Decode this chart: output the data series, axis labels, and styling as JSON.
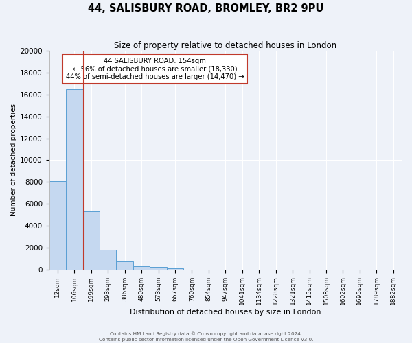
{
  "title": "44, SALISBURY ROAD, BROMLEY, BR2 9PU",
  "subtitle": "Size of property relative to detached houses in London",
  "xlabel": "Distribution of detached houses by size in London",
  "ylabel": "Number of detached properties",
  "bar_color": "#c5d8f0",
  "bar_edge_color": "#5a9fd4",
  "background_color": "#eef2f9",
  "grid_color": "#ffffff",
  "vline_color": "#c0392b",
  "categories": [
    "12sqm",
    "106sqm",
    "199sqm",
    "293sqm",
    "386sqm",
    "480sqm",
    "573sqm",
    "667sqm",
    "760sqm",
    "854sqm",
    "947sqm",
    "1041sqm",
    "1134sqm",
    "1228sqm",
    "1321sqm",
    "1415sqm",
    "1508sqm",
    "1602sqm",
    "1695sqm",
    "1789sqm",
    "1882sqm"
  ],
  "values": [
    8100,
    16500,
    5300,
    1800,
    700,
    300,
    200,
    100,
    0,
    0,
    0,
    0,
    0,
    0,
    0,
    0,
    0,
    0,
    0,
    0,
    0
  ],
  "vline_bar_index": 1.55,
  "ylim": [
    0,
    20000
  ],
  "yticks": [
    0,
    2000,
    4000,
    6000,
    8000,
    10000,
    12000,
    14000,
    16000,
    18000,
    20000
  ],
  "annotation_title": "44 SALISBURY ROAD: 154sqm",
  "annotation_line1": "← 56% of detached houses are smaller (18,330)",
  "annotation_line2": "44% of semi-detached houses are larger (14,470) →",
  "annotation_box_color": "#ffffff",
  "annotation_box_edge": "#c0392b",
  "footer_line1": "Contains HM Land Registry data © Crown copyright and database right 2024.",
  "footer_line2": "Contains public sector information licensed under the Open Government Licence v3.0."
}
